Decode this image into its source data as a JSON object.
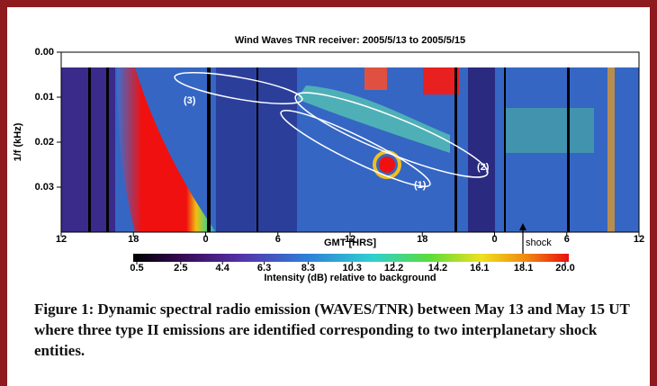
{
  "chart_data": {
    "type": "heatmap",
    "title": "Wind Waves TNR receiver: 2005/5/13 to 2005/5/15",
    "y_label": "1/f (kHz)",
    "x_label": "GMT [HRS]",
    "xlim": [
      0,
      48
    ],
    "xticks": [
      {
        "value": 0,
        "label": "12"
      },
      {
        "value": 6,
        "label": "18"
      },
      {
        "value": 12,
        "label": "0"
      },
      {
        "value": 18,
        "label": "6"
      },
      {
        "value": 24,
        "label": "12"
      },
      {
        "value": 30,
        "label": "18"
      },
      {
        "value": 36,
        "label": "0"
      },
      {
        "value": 42,
        "label": "6"
      },
      {
        "value": 48,
        "label": "12"
      }
    ],
    "ylim": [
      0,
      0.04
    ],
    "yticks": [
      {
        "value": 0,
        "label": "0.00"
      },
      {
        "value": 0.01,
        "label": "0.01"
      },
      {
        "value": 0.02,
        "label": "0.02"
      },
      {
        "value": 0.03,
        "label": "0.03"
      }
    ],
    "colorbar_label": "Intensity (dB) relative to background",
    "clim": [
      0.5,
      20
    ],
    "cticks": [
      0.5,
      2.5,
      4.4,
      6.3,
      8.3,
      10.3,
      12.2,
      14.2,
      16.1,
      18.1,
      {
        "value": 20,
        "label": "20.0"
      }
    ],
    "annotations": [
      "(1)",
      "(2)",
      "(3)"
    ],
    "shock_label": "shock"
  },
  "caption": "Figure 1: Dynamic spectral radio emission (WAVES/TNR) between May 13 and May 15 UT where three type II emissions are identified corresponding to two interplanetary shock entities."
}
